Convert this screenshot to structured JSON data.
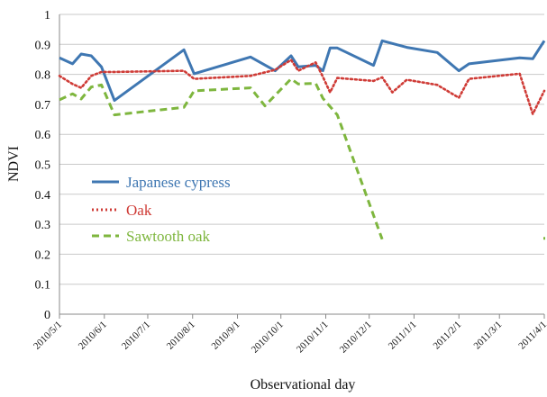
{
  "chart_data": {
    "type": "line",
    "xlabel": "Observational day",
    "ylabel": "NDVI",
    "ylim": [
      0,
      1
    ],
    "yticks": [
      "0",
      "0.1",
      "0.2",
      "0.3",
      "0.4",
      "0.5",
      "0.6",
      "0.7",
      "0.8",
      "0.9",
      "1"
    ],
    "xticks": [
      "2010/5/1",
      "2010/6/1",
      "2010/7/1",
      "2010/8/1",
      "2010/9/1",
      "2010/10/1",
      "2010/11/1",
      "2010/12/1",
      "2011/1/1",
      "2011/2/1",
      "2011/3/1",
      "2011/4/1"
    ],
    "xlim": [
      "2010-05-01",
      "2011-04-01"
    ],
    "grid": "horizontal",
    "legend_position": "left-middle",
    "series": [
      {
        "name": "Japanese cypress",
        "color": "#3f77b2",
        "style": "solid",
        "points": [
          [
            "2010-05-01",
            0.855
          ],
          [
            "2010-05-10",
            0.835
          ],
          [
            "2010-05-16",
            0.868
          ],
          [
            "2010-05-23",
            0.862
          ],
          [
            "2010-05-30",
            0.825
          ],
          [
            "2010-06-08",
            0.713
          ],
          [
            "2010-07-26",
            0.882
          ],
          [
            "2010-08-02",
            0.802
          ],
          [
            "2010-09-10",
            0.858
          ],
          [
            "2010-09-27",
            0.812
          ],
          [
            "2010-10-08",
            0.862
          ],
          [
            "2010-10-13",
            0.825
          ],
          [
            "2010-10-25",
            0.83
          ],
          [
            "2010-10-30",
            0.812
          ],
          [
            "2010-11-04",
            0.888
          ],
          [
            "2010-11-09",
            0.888
          ],
          [
            "2010-12-04",
            0.83
          ],
          [
            "2010-12-10",
            0.912
          ],
          [
            "2010-12-27",
            0.89
          ],
          [
            "2011-01-17",
            0.873
          ],
          [
            "2011-02-01",
            0.812
          ],
          [
            "2011-02-08",
            0.835
          ],
          [
            "2011-03-15",
            0.855
          ],
          [
            "2011-03-24",
            0.852
          ],
          [
            "2011-04-01",
            0.912
          ]
        ]
      },
      {
        "name": "Oak",
        "color": "#cf3b36",
        "style": "dotted",
        "points": [
          [
            "2010-05-01",
            0.795
          ],
          [
            "2010-05-10",
            0.768
          ],
          [
            "2010-05-16",
            0.755
          ],
          [
            "2010-05-23",
            0.795
          ],
          [
            "2010-05-30",
            0.808
          ],
          [
            "2010-06-08",
            0.808
          ],
          [
            "2010-07-26",
            0.812
          ],
          [
            "2010-08-02",
            0.785
          ],
          [
            "2010-09-10",
            0.795
          ],
          [
            "2010-09-27",
            0.815
          ],
          [
            "2010-10-08",
            0.848
          ],
          [
            "2010-10-13",
            0.812
          ],
          [
            "2010-10-25",
            0.84
          ],
          [
            "2010-10-30",
            0.792
          ],
          [
            "2010-11-04",
            0.74
          ],
          [
            "2010-11-09",
            0.788
          ],
          [
            "2010-12-04",
            0.778
          ],
          [
            "2010-12-10",
            0.79
          ],
          [
            "2010-12-17",
            0.74
          ],
          [
            "2010-12-27",
            0.782
          ],
          [
            "2011-01-17",
            0.765
          ],
          [
            "2011-02-01",
            0.722
          ],
          [
            "2011-02-08",
            0.785
          ],
          [
            "2011-03-15",
            0.802
          ],
          [
            "2011-03-24",
            0.668
          ],
          [
            "2011-04-01",
            0.745
          ]
        ]
      },
      {
        "name": "Sawtooth oak",
        "color": "#7eb63e",
        "style": "dashed",
        "points": [
          [
            "2010-05-01",
            0.715
          ],
          [
            "2010-05-10",
            0.735
          ],
          [
            "2010-05-16",
            0.718
          ],
          [
            "2010-05-23",
            0.758
          ],
          [
            "2010-05-30",
            0.765
          ],
          [
            "2010-06-08",
            0.665
          ],
          [
            "2010-07-26",
            0.69
          ],
          [
            "2010-08-02",
            0.745
          ],
          [
            "2010-09-10",
            0.755
          ],
          [
            "2010-09-20",
            0.695
          ],
          [
            "2010-10-08",
            0.785
          ],
          [
            "2010-10-13",
            0.768
          ],
          [
            "2010-10-25",
            0.77
          ],
          [
            "2010-10-30",
            0.72
          ],
          [
            "2010-11-09",
            0.665
          ],
          [
            "2010-12-10",
            0.25
          ]
        ]
      }
    ]
  }
}
